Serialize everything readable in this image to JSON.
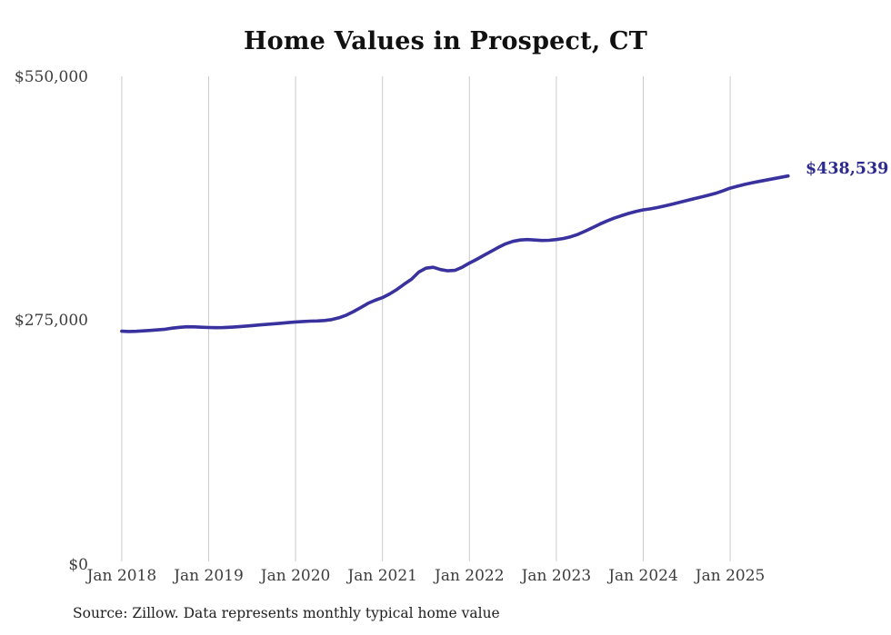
{
  "chart_data": {
    "type": "line",
    "title": "Home Values in Prospect, CT",
    "series_name": "Typical home value",
    "x_start": "Jan 2018",
    "x_frequency": "monthly",
    "x_end": "Sep 2025",
    "values": [
      263400,
      263100,
      263300,
      263800,
      264300,
      264900,
      265600,
      266800,
      267800,
      268400,
      268300,
      267900,
      267600,
      267400,
      267500,
      267900,
      268400,
      269000,
      269700,
      270400,
      271100,
      271800,
      272400,
      273100,
      273800,
      274300,
      274700,
      275000,
      275500,
      276500,
      278500,
      281500,
      285500,
      290000,
      294800,
      298300,
      301300,
      305500,
      310500,
      316500,
      322000,
      330000,
      334500,
      335500,
      333000,
      331500,
      332000,
      335500,
      340300,
      344500,
      349000,
      353500,
      358000,
      362000,
      364800,
      366300,
      366800,
      366300,
      365800,
      366000,
      366800,
      368000,
      370000,
      372800,
      376300,
      380200,
      384200,
      387800,
      391000,
      393800,
      396300,
      398500,
      400300,
      401500,
      403000,
      404800,
      406800,
      408800,
      410800,
      412800,
      414800,
      416800,
      419000,
      421800,
      424800,
      427000,
      429000,
      430800,
      432400,
      434000,
      435500,
      437000,
      438539
    ],
    "end_label": "$438,539",
    "x_ticks": [
      {
        "label": "Jan 2018",
        "month_index": 0
      },
      {
        "label": "Jan 2019",
        "month_index": 12
      },
      {
        "label": "Jan 2020",
        "month_index": 24
      },
      {
        "label": "Jan 2021",
        "month_index": 36
      },
      {
        "label": "Jan 2022",
        "month_index": 48
      },
      {
        "label": "Jan 2023",
        "month_index": 60
      },
      {
        "label": "Jan 2024",
        "month_index": 72
      },
      {
        "label": "Jan 2025",
        "month_index": 84
      }
    ],
    "y_ticks": [
      {
        "label": "$550,000",
        "value": 550000
      },
      {
        "label": "$275,000",
        "value": 275000
      },
      {
        "label": "$0",
        "value": 0
      }
    ],
    "ylim": [
      0,
      550000
    ],
    "grid": "vertical-only",
    "legend": "none",
    "colors": {
      "line": "#38319e",
      "end_label": "#2e2b8e",
      "gridline": "#cccccc",
      "axis_text": "#3d3d3d",
      "title_text": "#111111"
    }
  },
  "footer": {
    "source": "Source: Zillow. Data represents monthly typical home value"
  }
}
